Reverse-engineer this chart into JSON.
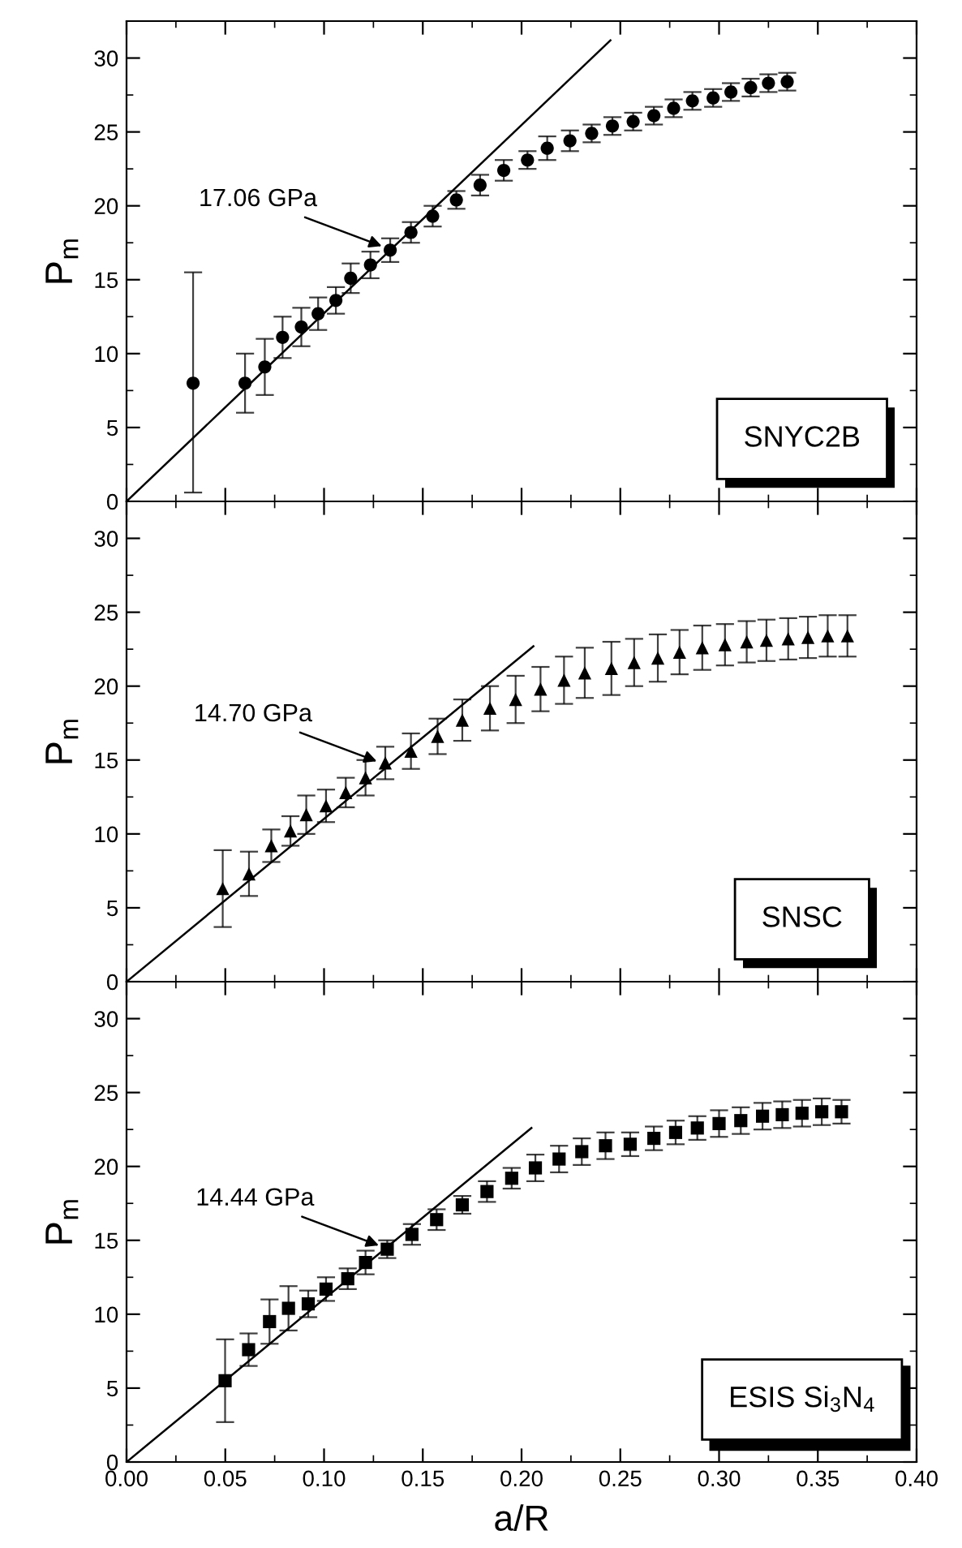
{
  "chart_data": [
    {
      "type": "scatter",
      "ylabel": "P$_{m}$",
      "tick_labels": "y",
      "xlim": [
        0,
        0.4
      ],
      "ylim": [
        0,
        32.5
      ],
      "xticks": [
        0,
        0.05,
        0.1,
        0.15,
        0.2,
        0.25,
        0.3,
        0.35,
        0.4
      ],
      "yticks": [
        0,
        5,
        10,
        15,
        20,
        25,
        30
      ],
      "annotations": [
        {
          "text": "17.06 GPa",
          "x": 0.1335,
          "y": 17.06
        },
        "SNYC2B"
      ],
      "series": [
        {
          "marker": "circle",
          "color": "#000000",
          "x": [
            0.0337,
            0.06,
            0.07,
            0.079,
            0.0885,
            0.097,
            0.106,
            0.1135,
            0.1235,
            0.1335,
            0.144,
            0.155,
            0.167,
            0.179,
            0.191,
            0.203,
            0.213,
            0.2245,
            0.2355,
            0.246,
            0.2565,
            0.267,
            0.277,
            0.2865,
            0.297,
            0.306,
            0.316,
            0.325,
            0.3345
          ],
          "values": [
            8.0,
            8.0,
            9.1,
            11.1,
            11.8,
            12.7,
            13.6,
            15.1,
            16.0,
            17.0,
            18.2,
            19.3,
            20.4,
            21.4,
            22.4,
            23.1,
            23.9,
            24.4,
            24.9,
            25.4,
            25.7,
            26.1,
            26.6,
            27.1,
            27.3,
            27.7,
            28.0,
            28.3,
            28.4
          ],
          "errors": [
            [
              0.6,
              15.5
            ],
            2.0,
            1.9,
            1.4,
            1.3,
            1.1,
            0.9,
            1.0,
            0.9,
            0.8,
            0.7,
            0.7,
            0.6,
            0.7,
            0.7,
            0.6,
            0.8,
            0.7,
            0.6,
            0.6,
            0.6,
            0.6,
            0.6,
            0.6,
            0.6,
            0.6,
            0.6,
            0.6,
            0.6
          ]
        },
        {
          "type": "line",
          "color": "#000000",
          "x": [
            0,
            0.245
          ],
          "values": [
            0,
            31.2
          ]
        }
      ]
    },
    {
      "type": "scatter",
      "ylabel": "P$_{m}$",
      "tick_labels": "y",
      "xlim": [
        0,
        0.4
      ],
      "ylim": [
        0,
        32.5
      ],
      "xticks": [
        0,
        0.05,
        0.1,
        0.15,
        0.2,
        0.25,
        0.3,
        0.35,
        0.4
      ],
      "yticks": [
        0,
        5,
        10,
        15,
        20,
        25,
        30
      ],
      "annotations": [
        {
          "text": "14.70 GPa",
          "x": 0.131,
          "y": 14.7
        },
        "SNSC"
      ],
      "series": [
        {
          "marker": "triangle",
          "color": "#000000",
          "x": [
            0.0487,
            0.062,
            0.0733,
            0.083,
            0.091,
            0.101,
            0.111,
            0.121,
            0.131,
            0.144,
            0.1575,
            0.17,
            0.184,
            0.197,
            0.2096,
            0.2215,
            0.232,
            0.2455,
            0.257,
            0.269,
            0.28,
            0.2915,
            0.303,
            0.314,
            0.324,
            0.335,
            0.345,
            0.355,
            0.365
          ],
          "values": [
            6.3,
            7.3,
            9.2,
            10.2,
            11.3,
            11.9,
            12.8,
            13.8,
            14.8,
            15.6,
            16.6,
            17.7,
            18.5,
            19.1,
            19.8,
            20.4,
            20.9,
            21.2,
            21.6,
            21.9,
            22.3,
            22.6,
            22.8,
            23.0,
            23.1,
            23.2,
            23.3,
            23.4,
            23.4
          ],
          "errors": [
            2.6,
            1.5,
            1.1,
            1.0,
            1.3,
            1.1,
            1.0,
            1.2,
            1.1,
            1.2,
            1.2,
            1.4,
            1.5,
            1.6,
            1.5,
            1.6,
            1.7,
            1.8,
            1.6,
            1.6,
            1.5,
            1.5,
            1.4,
            1.4,
            1.4,
            1.4,
            1.4,
            1.4,
            1.4
          ]
        },
        {
          "type": "line",
          "color": "#000000",
          "x": [
            0,
            0.206
          ],
          "values": [
            0,
            22.7
          ]
        }
      ]
    },
    {
      "type": "scatter",
      "xlabel": "a/R",
      "ylabel": "P$_{m}$",
      "xlim": [
        0,
        0.4
      ],
      "ylim": [
        0,
        32.5
      ],
      "xticks": [
        {
          "value": 0,
          "label": "0.00"
        },
        {
          "value": 0.05,
          "label": "0.05"
        },
        {
          "value": 0.1,
          "label": "0.10"
        },
        {
          "value": 0.15,
          "label": "0.15"
        },
        {
          "value": 0.2,
          "label": "0.20"
        },
        {
          "value": 0.25,
          "label": "0.25"
        },
        {
          "value": 0.3,
          "label": "0.30"
        },
        {
          "value": 0.35,
          "label": "0.35"
        },
        {
          "value": 0.4,
          "label": "0.40"
        }
      ],
      "yticks": [
        0,
        5,
        10,
        15,
        20,
        25,
        30
      ],
      "annotations": [
        {
          "text": "14.44 GPa",
          "x": 0.132,
          "y": 14.44
        },
        "ESIS Si$_{3}$N$_{4}$"
      ],
      "series": [
        {
          "marker": "square",
          "color": "#000000",
          "x": [
            0.0499,
            0.0618,
            0.0724,
            0.082,
            0.092,
            0.101,
            0.112,
            0.121,
            0.132,
            0.1445,
            0.157,
            0.17,
            0.1825,
            0.195,
            0.207,
            0.219,
            0.2305,
            0.2425,
            0.255,
            0.267,
            0.278,
            0.289,
            0.3,
            0.311,
            0.322,
            0.332,
            0.342,
            0.352,
            0.362
          ],
          "values": [
            5.5,
            7.6,
            9.5,
            10.4,
            10.7,
            11.7,
            12.4,
            13.5,
            14.4,
            15.4,
            16.4,
            17.4,
            18.3,
            19.2,
            19.9,
            20.5,
            21.0,
            21.4,
            21.5,
            21.9,
            22.3,
            22.6,
            22.9,
            23.1,
            23.4,
            23.5,
            23.6,
            23.7,
            23.7
          ],
          "errors": [
            2.8,
            1.1,
            1.5,
            1.5,
            0.9,
            0.8,
            0.7,
            0.8,
            0.6,
            0.7,
            0.7,
            0.6,
            0.7,
            0.7,
            0.9,
            0.9,
            0.9,
            0.9,
            0.8,
            0.8,
            0.8,
            0.8,
            0.9,
            0.9,
            0.9,
            0.9,
            0.9,
            0.9,
            0.8
          ]
        },
        {
          "type": "line",
          "color": "#000000",
          "x": [
            0,
            0.205
          ],
          "values": [
            0,
            22.6
          ]
        }
      ]
    }
  ]
}
